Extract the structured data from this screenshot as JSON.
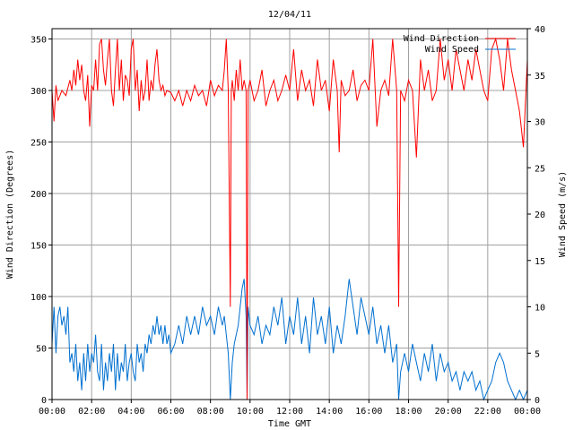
{
  "chart_data": {
    "type": "line",
    "title": "12/04/11",
    "xlabel": "Time GMT",
    "ylabel": "Wind Direction (Degrees)",
    "y2label": "Wind Speed (m/s)",
    "x_ticks": [
      "00:00",
      "02:00",
      "04:00",
      "06:00",
      "08:00",
      "10:00",
      "12:00",
      "14:00",
      "16:00",
      "18:00",
      "20:00",
      "22:00",
      "00:00"
    ],
    "x_range_hours": [
      0,
      24
    ],
    "y_ticks": [
      "0",
      "50",
      "100",
      "150",
      "200",
      "250",
      "300",
      "350"
    ],
    "ylim": [
      0,
      360
    ],
    "y2_ticks": [
      "0",
      "5",
      "10",
      "15",
      "20",
      "25",
      "30",
      "35",
      "40"
    ],
    "y2lim": [
      0,
      40
    ],
    "grid": true,
    "legend_position": "top-right",
    "series": [
      {
        "name": "Wind Direction",
        "axis": "left",
        "color": "#ff0000",
        "points": [
          [
            0.0,
            300
          ],
          [
            0.1,
            270
          ],
          [
            0.2,
            305
          ],
          [
            0.3,
            290
          ],
          [
            0.5,
            300
          ],
          [
            0.7,
            295
          ],
          [
            0.9,
            310
          ],
          [
            1.0,
            300
          ],
          [
            1.1,
            320
          ],
          [
            1.2,
            305
          ],
          [
            1.3,
            330
          ],
          [
            1.4,
            310
          ],
          [
            1.5,
            325
          ],
          [
            1.6,
            300
          ],
          [
            1.7,
            290
          ],
          [
            1.8,
            315
          ],
          [
            1.9,
            265
          ],
          [
            2.0,
            305
          ],
          [
            2.1,
            300
          ],
          [
            2.2,
            330
          ],
          [
            2.3,
            300
          ],
          [
            2.4,
            345
          ],
          [
            2.5,
            350
          ],
          [
            2.6,
            320
          ],
          [
            2.7,
            305
          ],
          [
            2.8,
            330
          ],
          [
            2.9,
            350
          ],
          [
            3.0,
            300
          ],
          [
            3.1,
            285
          ],
          [
            3.2,
            320
          ],
          [
            3.3,
            350
          ],
          [
            3.4,
            300
          ],
          [
            3.5,
            330
          ],
          [
            3.6,
            290
          ],
          [
            3.7,
            315
          ],
          [
            3.8,
            310
          ],
          [
            3.9,
            295
          ],
          [
            4.0,
            340
          ],
          [
            4.1,
            350
          ],
          [
            4.2,
            300
          ],
          [
            4.3,
            320
          ],
          [
            4.4,
            280
          ],
          [
            4.5,
            310
          ],
          [
            4.6,
            290
          ],
          [
            4.7,
            300
          ],
          [
            4.8,
            330
          ],
          [
            4.9,
            290
          ],
          [
            5.0,
            310
          ],
          [
            5.1,
            300
          ],
          [
            5.2,
            325
          ],
          [
            5.3,
            340
          ],
          [
            5.4,
            310
          ],
          [
            5.5,
            300
          ],
          [
            5.6,
            305
          ],
          [
            5.7,
            295
          ],
          [
            5.8,
            300
          ],
          [
            6.0,
            298
          ],
          [
            6.2,
            290
          ],
          [
            6.4,
            300
          ],
          [
            6.6,
            285
          ],
          [
            6.8,
            300
          ],
          [
            7.0,
            290
          ],
          [
            7.2,
            305
          ],
          [
            7.4,
            295
          ],
          [
            7.6,
            300
          ],
          [
            7.8,
            285
          ],
          [
            8.0,
            310
          ],
          [
            8.2,
            295
          ],
          [
            8.4,
            305
          ],
          [
            8.6,
            300
          ],
          [
            8.7,
            320
          ],
          [
            8.8,
            350
          ],
          [
            8.9,
            300
          ],
          [
            9.0,
            90
          ],
          [
            9.05,
            300
          ],
          [
            9.1,
            310
          ],
          [
            9.2,
            290
          ],
          [
            9.3,
            320
          ],
          [
            9.4,
            300
          ],
          [
            9.5,
            330
          ],
          [
            9.6,
            300
          ],
          [
            9.7,
            310
          ],
          [
            9.8,
            300
          ],
          [
            9.85,
            0
          ],
          [
            9.9,
            300
          ],
          [
            10.0,
            310
          ],
          [
            10.2,
            290
          ],
          [
            10.4,
            300
          ],
          [
            10.6,
            320
          ],
          [
            10.8,
            285
          ],
          [
            11.0,
            300
          ],
          [
            11.2,
            310
          ],
          [
            11.4,
            290
          ],
          [
            11.6,
            300
          ],
          [
            11.8,
            315
          ],
          [
            12.0,
            300
          ],
          [
            12.2,
            340
          ],
          [
            12.4,
            290
          ],
          [
            12.6,
            320
          ],
          [
            12.8,
            300
          ],
          [
            13.0,
            310
          ],
          [
            13.2,
            285
          ],
          [
            13.4,
            330
          ],
          [
            13.6,
            300
          ],
          [
            13.8,
            310
          ],
          [
            14.0,
            280
          ],
          [
            14.2,
            330
          ],
          [
            14.4,
            300
          ],
          [
            14.5,
            240
          ],
          [
            14.6,
            310
          ],
          [
            14.8,
            295
          ],
          [
            15.0,
            300
          ],
          [
            15.2,
            320
          ],
          [
            15.4,
            290
          ],
          [
            15.6,
            305
          ],
          [
            15.8,
            310
          ],
          [
            16.0,
            300
          ],
          [
            16.2,
            350
          ],
          [
            16.4,
            265
          ],
          [
            16.6,
            300
          ],
          [
            16.8,
            310
          ],
          [
            17.0,
            295
          ],
          [
            17.2,
            350
          ],
          [
            17.4,
            300
          ],
          [
            17.5,
            90
          ],
          [
            17.6,
            300
          ],
          [
            17.8,
            290
          ],
          [
            18.0,
            310
          ],
          [
            18.2,
            300
          ],
          [
            18.4,
            235
          ],
          [
            18.6,
            330
          ],
          [
            18.8,
            300
          ],
          [
            19.0,
            320
          ],
          [
            19.2,
            290
          ],
          [
            19.4,
            300
          ],
          [
            19.6,
            350
          ],
          [
            19.8,
            310
          ],
          [
            20.0,
            330
          ],
          [
            20.2,
            300
          ],
          [
            20.4,
            340
          ],
          [
            20.6,
            320
          ],
          [
            20.8,
            300
          ],
          [
            21.0,
            330
          ],
          [
            21.2,
            310
          ],
          [
            21.4,
            340
          ],
          [
            21.6,
            320
          ],
          [
            21.8,
            300
          ],
          [
            22.0,
            290
          ],
          [
            22.2,
            340
          ],
          [
            22.4,
            350
          ],
          [
            22.6,
            330
          ],
          [
            22.8,
            300
          ],
          [
            23.0,
            350
          ],
          [
            23.2,
            320
          ],
          [
            23.4,
            300
          ],
          [
            23.6,
            280
          ],
          [
            23.8,
            245
          ],
          [
            24.0,
            330
          ]
        ]
      },
      {
        "name": "Wind Speed",
        "axis": "right",
        "color": "#0070d0",
        "points": [
          [
            0.0,
            6
          ],
          [
            0.1,
            10
          ],
          [
            0.2,
            5
          ],
          [
            0.3,
            9
          ],
          [
            0.4,
            10
          ],
          [
            0.5,
            8
          ],
          [
            0.6,
            9
          ],
          [
            0.7,
            7
          ],
          [
            0.8,
            10
          ],
          [
            0.9,
            4
          ],
          [
            1.0,
            5
          ],
          [
            1.1,
            3
          ],
          [
            1.2,
            6
          ],
          [
            1.3,
            2
          ],
          [
            1.4,
            4
          ],
          [
            1.5,
            1
          ],
          [
            1.6,
            5
          ],
          [
            1.7,
            2
          ],
          [
            1.8,
            6
          ],
          [
            1.9,
            3
          ],
          [
            2.0,
            5
          ],
          [
            2.1,
            4
          ],
          [
            2.2,
            7
          ],
          [
            2.3,
            3
          ],
          [
            2.4,
            2
          ],
          [
            2.5,
            6
          ],
          [
            2.6,
            1
          ],
          [
            2.7,
            4
          ],
          [
            2.8,
            2
          ],
          [
            2.9,
            5
          ],
          [
            3.0,
            3
          ],
          [
            3.1,
            6
          ],
          [
            3.2,
            1
          ],
          [
            3.3,
            5
          ],
          [
            3.4,
            2
          ],
          [
            3.5,
            4
          ],
          [
            3.6,
            3
          ],
          [
            3.7,
            6
          ],
          [
            3.8,
            2
          ],
          [
            3.9,
            4
          ],
          [
            4.0,
            5
          ],
          [
            4.1,
            3
          ],
          [
            4.2,
            2
          ],
          [
            4.3,
            6
          ],
          [
            4.4,
            4
          ],
          [
            4.5,
            5
          ],
          [
            4.6,
            3
          ],
          [
            4.7,
            6
          ],
          [
            4.8,
            5
          ],
          [
            4.9,
            7
          ],
          [
            5.0,
            6
          ],
          [
            5.1,
            8
          ],
          [
            5.2,
            7
          ],
          [
            5.3,
            9
          ],
          [
            5.4,
            7
          ],
          [
            5.5,
            8
          ],
          [
            5.6,
            6
          ],
          [
            5.7,
            8
          ],
          [
            5.8,
            6
          ],
          [
            5.9,
            7
          ],
          [
            6.0,
            5
          ],
          [
            6.2,
            6
          ],
          [
            6.4,
            8
          ],
          [
            6.6,
            6
          ],
          [
            6.8,
            9
          ],
          [
            7.0,
            7
          ],
          [
            7.2,
            9
          ],
          [
            7.4,
            7
          ],
          [
            7.6,
            10
          ],
          [
            7.8,
            8
          ],
          [
            8.0,
            9
          ],
          [
            8.2,
            7
          ],
          [
            8.4,
            10
          ],
          [
            8.6,
            8
          ],
          [
            8.7,
            9
          ],
          [
            8.8,
            7
          ],
          [
            8.9,
            5
          ],
          [
            9.0,
            0
          ],
          [
            9.1,
            4
          ],
          [
            9.2,
            6
          ],
          [
            9.4,
            8
          ],
          [
            9.6,
            12
          ],
          [
            9.7,
            13
          ],
          [
            9.8,
            9
          ],
          [
            9.85,
            0
          ],
          [
            9.9,
            10
          ],
          [
            10.0,
            8
          ],
          [
            10.2,
            7
          ],
          [
            10.4,
            9
          ],
          [
            10.6,
            6
          ],
          [
            10.8,
            8
          ],
          [
            11.0,
            7
          ],
          [
            11.2,
            10
          ],
          [
            11.4,
            8
          ],
          [
            11.6,
            11
          ],
          [
            11.8,
            6
          ],
          [
            12.0,
            9
          ],
          [
            12.2,
            7
          ],
          [
            12.4,
            11
          ],
          [
            12.6,
            6
          ],
          [
            12.8,
            9
          ],
          [
            13.0,
            5
          ],
          [
            13.2,
            11
          ],
          [
            13.4,
            7
          ],
          [
            13.6,
            9
          ],
          [
            13.8,
            6
          ],
          [
            14.0,
            10
          ],
          [
            14.2,
            5
          ],
          [
            14.4,
            8
          ],
          [
            14.6,
            6
          ],
          [
            14.8,
            9
          ],
          [
            15.0,
            13
          ],
          [
            15.2,
            10
          ],
          [
            15.4,
            7
          ],
          [
            15.6,
            11
          ],
          [
            15.8,
            9
          ],
          [
            16.0,
            7
          ],
          [
            16.2,
            10
          ],
          [
            16.4,
            6
          ],
          [
            16.6,
            8
          ],
          [
            16.8,
            5
          ],
          [
            17.0,
            8
          ],
          [
            17.2,
            4
          ],
          [
            17.4,
            6
          ],
          [
            17.5,
            0
          ],
          [
            17.6,
            3
          ],
          [
            17.8,
            5
          ],
          [
            18.0,
            3
          ],
          [
            18.2,
            6
          ],
          [
            18.4,
            4
          ],
          [
            18.6,
            2
          ],
          [
            18.8,
            5
          ],
          [
            19.0,
            3
          ],
          [
            19.2,
            6
          ],
          [
            19.4,
            2
          ],
          [
            19.6,
            5
          ],
          [
            19.8,
            3
          ],
          [
            20.0,
            4
          ],
          [
            20.2,
            2
          ],
          [
            20.4,
            3
          ],
          [
            20.6,
            1
          ],
          [
            20.8,
            3
          ],
          [
            21.0,
            2
          ],
          [
            21.2,
            3
          ],
          [
            21.4,
            1
          ],
          [
            21.6,
            2
          ],
          [
            21.8,
            0
          ],
          [
            22.0,
            1
          ],
          [
            22.2,
            2
          ],
          [
            22.4,
            4
          ],
          [
            22.6,
            5
          ],
          [
            22.8,
            4
          ],
          [
            23.0,
            2
          ],
          [
            23.2,
            1
          ],
          [
            23.4,
            0
          ],
          [
            23.6,
            1
          ],
          [
            23.8,
            0
          ],
          [
            24.0,
            1
          ]
        ]
      }
    ]
  }
}
